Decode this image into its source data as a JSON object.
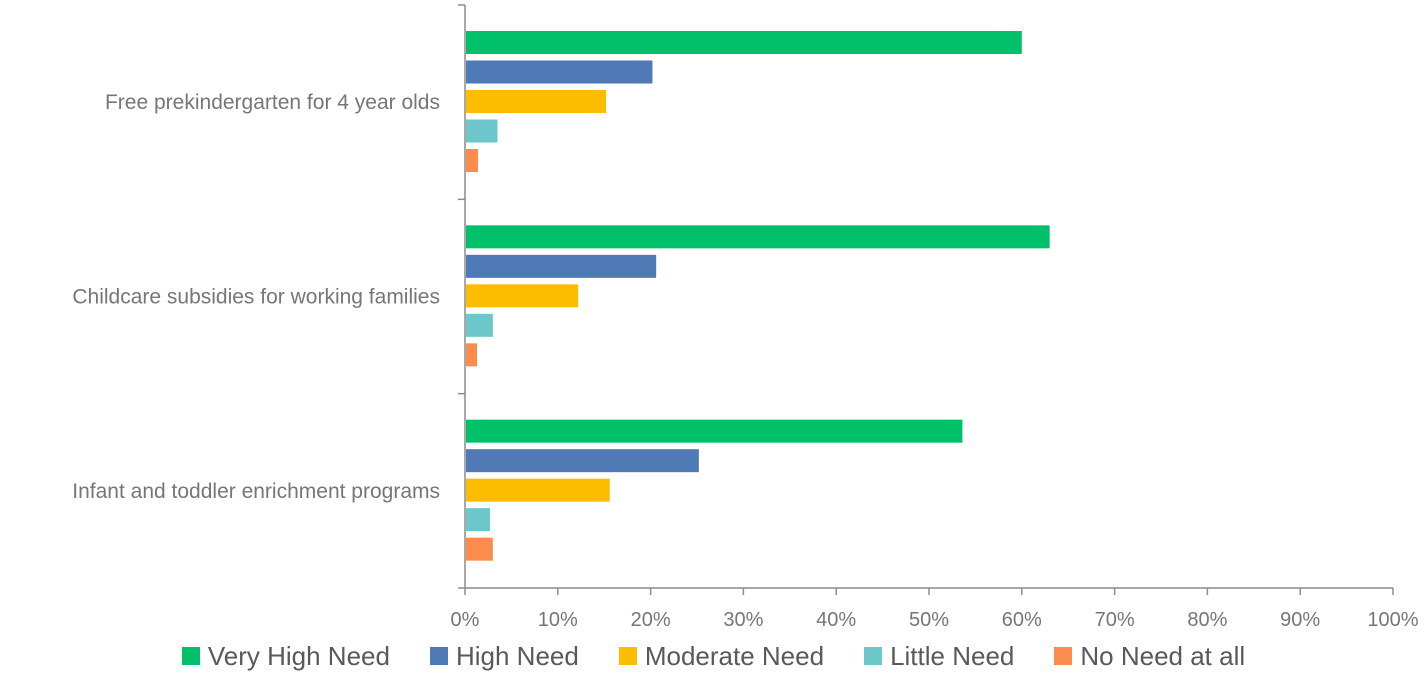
{
  "chart_data": {
    "type": "bar",
    "orientation": "horizontal",
    "categories": [
      "Free prekindergarten for 4 year olds",
      "Childcare subsidies for working families",
      "Infant and toddler enrichment programs"
    ],
    "series": [
      {
        "name": "Very High Need",
        "color": "#00c06a",
        "values": [
          60,
          63,
          53.6
        ]
      },
      {
        "name": "High Need",
        "color": "#4f7ab6",
        "values": [
          20.2,
          20.6,
          25.2
        ]
      },
      {
        "name": "Moderate Need",
        "color": "#fcbc00",
        "values": [
          15.2,
          12.2,
          15.6
        ]
      },
      {
        "name": "Little Need",
        "color": "#6bc7c9",
        "values": [
          3.5,
          3.0,
          2.7
        ]
      },
      {
        "name": "No Need at all",
        "color": "#fc8c4c",
        "values": [
          1.4,
          1.3,
          3.0
        ]
      }
    ],
    "xlim": [
      0,
      100
    ],
    "x_ticks": [
      "0%",
      "10%",
      "20%",
      "30%",
      "40%",
      "50%",
      "60%",
      "70%",
      "80%",
      "90%",
      "100%"
    ],
    "grid": false,
    "legend_position": "bottom"
  }
}
